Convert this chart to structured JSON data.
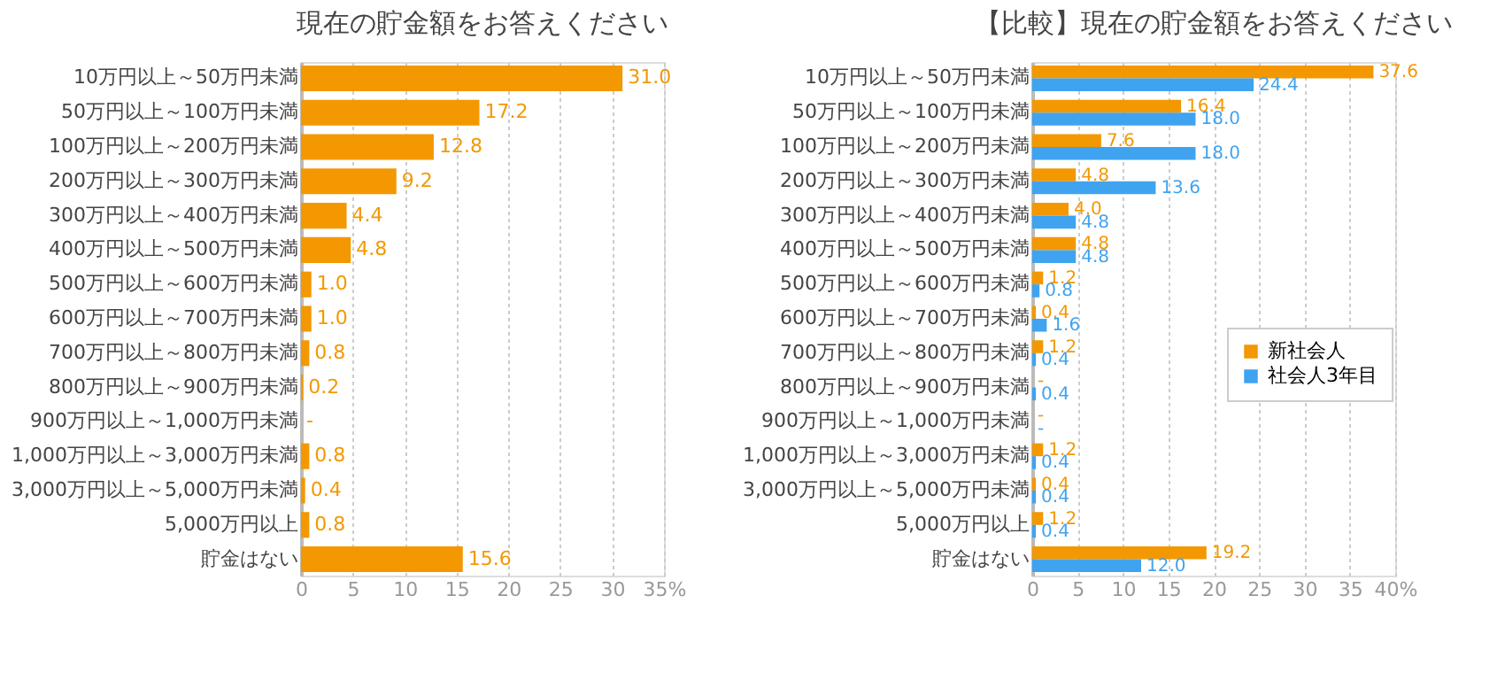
{
  "chart_data": [
    {
      "type": "bar",
      "orientation": "horizontal",
      "title": "現在の貯金額をお答えください",
      "categories": [
        "10万円以上～50万円未満",
        "50万円以上～100万円未満",
        "100万円以上～200万円未満",
        "200万円以上～300万円未満",
        "300万円以上～400万円未満",
        "400万円以上～500万円未満",
        "500万円以上～600万円未満",
        "600万円以上～700万円未満",
        "700万円以上～800万円未満",
        "800万円以上～900万円未満",
        "900万円以上～1,000万円未満",
        "1,000万円以上～3,000万円未満",
        "3,000万円以上～5,000万円未満",
        "5,000万円以上",
        "貯金はない"
      ],
      "color": "#f39800",
      "values": [
        31.0,
        17.2,
        12.8,
        9.2,
        4.4,
        4.8,
        1.0,
        1.0,
        0.8,
        0.2,
        0,
        0.8,
        0.4,
        0.8,
        15.6
      ],
      "value_labels": [
        "31.0",
        "17.2",
        "12.8",
        "9.2",
        "4.4",
        "4.8",
        "1.0",
        "1.0",
        "0.8",
        "0.2",
        "-",
        "0.8",
        "0.4",
        "0.8",
        "15.6"
      ],
      "xlim": [
        0,
        35
      ],
      "xticks": [
        0,
        5,
        10,
        15,
        20,
        25,
        30,
        {
          "value": 35,
          "label": "35%"
        }
      ],
      "grid": "x"
    },
    {
      "type": "bar",
      "orientation": "horizontal",
      "title": "【比較】現在の貯金額をお答えください",
      "categories": [
        "10万円以上～50万円未満",
        "50万円以上～100万円未満",
        "100万円以上～200万円未満",
        "200万円以上～300万円未満",
        "300万円以上～400万円未満",
        "400万円以上～500万円未満",
        "500万円以上～600万円未満",
        "600万円以上～700万円未満",
        "700万円以上～800万円未満",
        "800万円以上～900万円未満",
        "900万円以上～1,000万円未満",
        "1,000万円以上～3,000万円未満",
        "3,000万円以上～5,000万円未満",
        "5,000万円以上",
        "貯金はない"
      ],
      "series": [
        {
          "name": "新社会人",
          "color": "#f39800",
          "values": [
            37.6,
            16.4,
            7.6,
            4.8,
            4.0,
            4.8,
            1.2,
            0.4,
            1.2,
            0,
            0,
            1.2,
            0.4,
            1.2,
            19.2
          ],
          "value_labels": [
            "37.6",
            "16.4",
            "7.6",
            "4.8",
            "4.0",
            "4.8",
            "1.2",
            "0.4",
            "1.2",
            "-",
            "-",
            "1.2",
            "0.4",
            "1.2",
            "19.2"
          ]
        },
        {
          "name": "社会人3年目",
          "color": "#3fa3f0",
          "values": [
            24.4,
            18.0,
            18.0,
            13.6,
            4.8,
            4.8,
            0.8,
            1.6,
            0.4,
            0.4,
            0,
            0.4,
            0.4,
            0.4,
            12.0
          ],
          "value_labels": [
            "24.4",
            "18.0",
            "18.0",
            "13.6",
            "4.8",
            "4.8",
            "0.8",
            "1.6",
            "0.4",
            "0.4",
            "-",
            "0.4",
            "0.4",
            "0.4",
            "12.0"
          ]
        }
      ],
      "xlim": [
        0,
        40
      ],
      "xticks": [
        0,
        5,
        10,
        15,
        20,
        25,
        30,
        35,
        {
          "value": 40,
          "label": "40%"
        }
      ],
      "grid": "x",
      "legend": "right"
    }
  ]
}
